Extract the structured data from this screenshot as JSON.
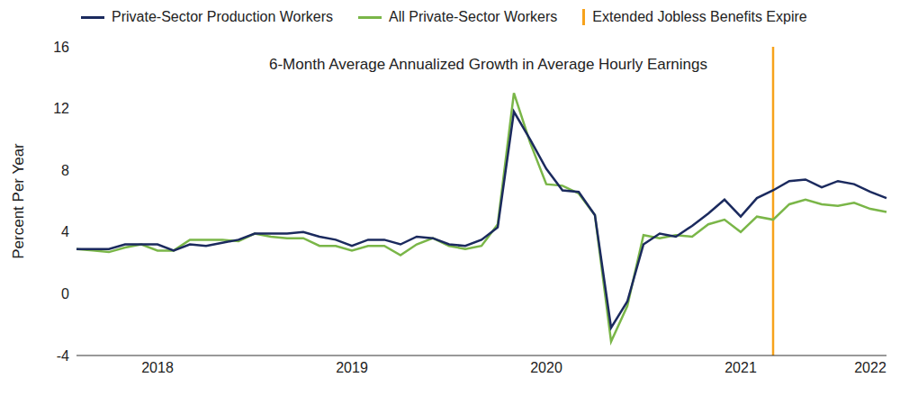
{
  "chart_data": {
    "type": "line",
    "title": "6-Month Average Annualized Growth in Average Hourly Earnings",
    "y_label": "Percent Per Year",
    "categories": [
      null,
      null,
      null,
      null,
      null,
      "2018",
      null,
      null,
      null,
      null,
      null,
      null,
      null,
      null,
      null,
      null,
      null,
      "2019",
      null,
      null,
      null,
      null,
      null,
      null,
      null,
      null,
      null,
      null,
      null,
      "2020",
      null,
      null,
      null,
      null,
      null,
      null,
      null,
      null,
      null,
      null,
      null,
      "2021",
      null,
      null,
      null,
      null,
      null,
      null,
      null,
      "2022",
      null
    ],
    "series": [
      {
        "name": "Private-Sector Production Workers",
        "color": "#1b2a5e",
        "values": [
          2.9,
          2.9,
          2.9,
          3.2,
          3.2,
          3.2,
          2.8,
          3.2,
          3.1,
          3.3,
          3.5,
          3.9,
          3.9,
          3.9,
          4.0,
          3.7,
          3.5,
          3.1,
          3.5,
          3.5,
          3.2,
          3.7,
          3.6,
          3.2,
          3.1,
          3.5,
          4.3,
          11.8,
          10.0,
          8.1,
          6.7,
          6.6,
          5.1,
          -2.2,
          -0.5,
          3.2,
          3.9,
          3.7,
          4.4,
          5.2,
          6.1,
          5.0,
          6.2,
          6.7,
          7.3,
          7.4,
          6.9,
          7.3,
          7.1,
          6.6,
          6.2
        ]
      },
      {
        "name": "All Private-Sector Workers",
        "color": "#7ab648",
        "values": [
          2.9,
          2.8,
          2.7,
          3.0,
          3.2,
          2.8,
          2.8,
          3.5,
          3.5,
          3.5,
          3.4,
          3.9,
          3.7,
          3.6,
          3.6,
          3.1,
          3.1,
          2.8,
          3.1,
          3.1,
          2.5,
          3.2,
          3.6,
          3.1,
          2.9,
          3.1,
          4.5,
          13.0,
          9.8,
          7.1,
          7.0,
          6.5,
          5.1,
          -3.1,
          -0.8,
          3.8,
          3.6,
          3.8,
          3.7,
          4.5,
          4.8,
          4.0,
          5.0,
          4.8,
          5.8,
          6.1,
          5.8,
          5.7,
          5.9,
          5.5,
          5.3
        ]
      }
    ],
    "vertical_line": {
      "name": "Extended Jobless Benefits Expire",
      "color": "#f7a21b",
      "position": 43
    },
    "ylim": [
      -4,
      16
    ],
    "yticks": [
      -4,
      0,
      4,
      8,
      12,
      16
    ],
    "grid": false
  }
}
